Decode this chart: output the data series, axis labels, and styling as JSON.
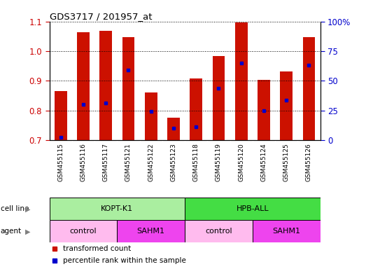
{
  "title": "GDS3717 / 201957_at",
  "samples": [
    "GSM455115",
    "GSM455116",
    "GSM455117",
    "GSM455121",
    "GSM455122",
    "GSM455123",
    "GSM455118",
    "GSM455119",
    "GSM455120",
    "GSM455124",
    "GSM455125",
    "GSM455126"
  ],
  "bar_bottom": 0.7,
  "red_values": [
    0.865,
    1.065,
    1.068,
    1.048,
    0.86,
    0.775,
    0.908,
    0.983,
    1.097,
    0.902,
    0.932,
    1.048
  ],
  "blue_values": [
    0.71,
    0.82,
    0.826,
    0.935,
    0.796,
    0.74,
    0.745,
    0.875,
    0.96,
    0.798,
    0.834,
    0.953
  ],
  "ylim_left": [
    0.7,
    1.1
  ],
  "ylim_right": [
    0,
    100
  ],
  "yticks_left": [
    0.7,
    0.8,
    0.9,
    1.0,
    1.1
  ],
  "yticks_right": [
    0,
    25,
    50,
    75,
    100
  ],
  "bar_color": "#cc1100",
  "blue_color": "#0000cc",
  "bar_width": 0.55,
  "cell_line_groups": [
    {
      "label": "KOPT-K1",
      "start": 0,
      "end": 6,
      "color": "#aaeea0"
    },
    {
      "label": "HPB-ALL",
      "start": 6,
      "end": 12,
      "color": "#44dd44"
    }
  ],
  "agent_groups": [
    {
      "label": "control",
      "start": 0,
      "end": 3,
      "color": "#ffbbee"
    },
    {
      "label": "SAHM1",
      "start": 3,
      "end": 6,
      "color": "#ee44ee"
    },
    {
      "label": "control",
      "start": 6,
      "end": 9,
      "color": "#ffbbee"
    },
    {
      "label": "SAHM1",
      "start": 9,
      "end": 12,
      "color": "#ee44ee"
    }
  ],
  "legend_items": [
    {
      "label": "transformed count",
      "color": "#cc1100"
    },
    {
      "label": "percentile rank within the sample",
      "color": "#0000cc"
    }
  ],
  "row_labels": [
    "cell line",
    "agent"
  ],
  "background_color": "#ffffff",
  "tick_color_left": "#cc0000",
  "tick_color_right": "#0000cc",
  "xtick_bg": "#cccccc"
}
